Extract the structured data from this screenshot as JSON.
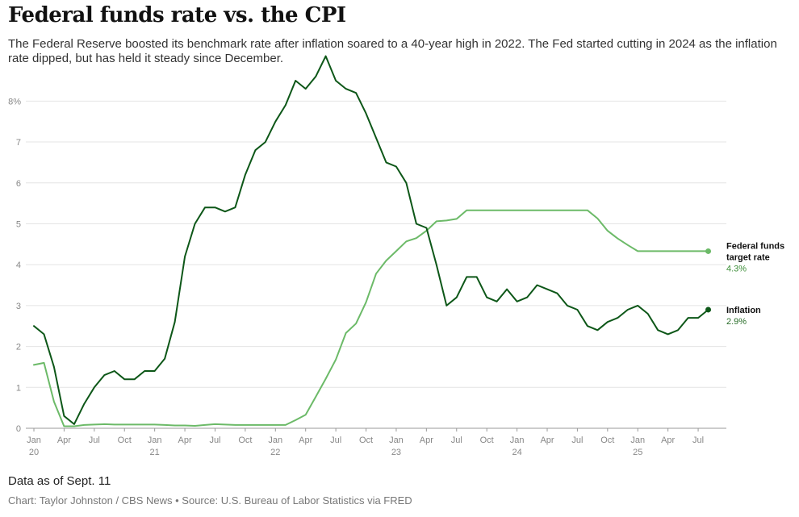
{
  "header": {
    "title": "Federal funds rate vs. the CPI",
    "subtitle": "The Federal Reserve boosted its benchmark rate after inflation soared to a 40-year high in 2022. The Fed started cutting in 2024 as the inflation rate dipped, but has held it steady since December."
  },
  "footer": {
    "note": "Data as of Sept. 11",
    "credit": "Chart: Taylor Johnston / CBS News • Source: U.S. Bureau of Labor Statistics via FRED"
  },
  "colors": {
    "inflation": "#0d5718",
    "fed_funds": "#6cba68",
    "fed_value": "#3f8f3a",
    "inflation_value": "#2a6e2a",
    "grid": "#e4e4e4",
    "axis": "#999999"
  },
  "chart_data": {
    "type": "line",
    "title": "Federal funds rate vs. the CPI",
    "x_unit": "month index (0 = Jan 2020)",
    "xlim": [
      0,
      68
    ],
    "ylim": [
      0,
      8.5
    ],
    "y_ticks": [
      {
        "value": 0,
        "label": "0"
      },
      {
        "value": 1,
        "label": "1"
      },
      {
        "value": 2,
        "label": "2"
      },
      {
        "value": 3,
        "label": "3"
      },
      {
        "value": 4,
        "label": "4"
      },
      {
        "value": 5,
        "label": "5"
      },
      {
        "value": 6,
        "label": "6"
      },
      {
        "value": 7,
        "label": "7"
      },
      {
        "value": 8,
        "label": "8%"
      }
    ],
    "x_ticks": [
      {
        "month": 0,
        "label": "Jan",
        "year": "20"
      },
      {
        "month": 3,
        "label": "Apr"
      },
      {
        "month": 6,
        "label": "Jul"
      },
      {
        "month": 9,
        "label": "Oct"
      },
      {
        "month": 12,
        "label": "Jan",
        "year": "21"
      },
      {
        "month": 15,
        "label": "Apr"
      },
      {
        "month": 18,
        "label": "Jul"
      },
      {
        "month": 21,
        "label": "Oct"
      },
      {
        "month": 24,
        "label": "Jan",
        "year": "22"
      },
      {
        "month": 27,
        "label": "Apr"
      },
      {
        "month": 30,
        "label": "Jul"
      },
      {
        "month": 33,
        "label": "Oct"
      },
      {
        "month": 36,
        "label": "Jan",
        "year": "23"
      },
      {
        "month": 39,
        "label": "Apr"
      },
      {
        "month": 42,
        "label": "Jul"
      },
      {
        "month": 45,
        "label": "Oct"
      },
      {
        "month": 48,
        "label": "Jan",
        "year": "24"
      },
      {
        "month": 51,
        "label": "Apr"
      },
      {
        "month": 54,
        "label": "Jul"
      },
      {
        "month": 57,
        "label": "Oct"
      },
      {
        "month": 60,
        "label": "Jan",
        "year": "25"
      },
      {
        "month": 63,
        "label": "Apr"
      },
      {
        "month": 66,
        "label": "Jul"
      }
    ],
    "series": [
      {
        "name": "Inflation",
        "label_lines": [
          "Inflation"
        ],
        "end_value": "2.9%",
        "values": [
          2.5,
          2.3,
          1.5,
          0.3,
          0.1,
          0.6,
          1.0,
          1.3,
          1.4,
          1.2,
          1.2,
          1.4,
          1.4,
          1.7,
          2.6,
          4.2,
          5.0,
          5.4,
          5.4,
          5.3,
          5.4,
          6.2,
          6.8,
          7.0,
          7.5,
          7.9,
          8.5,
          8.3,
          8.6,
          9.1,
          8.5,
          8.3,
          8.2,
          7.7,
          7.1,
          6.5,
          6.4,
          6.0,
          5.0,
          4.9,
          4.0,
          3.0,
          3.2,
          3.7,
          3.7,
          3.2,
          3.1,
          3.4,
          3.1,
          3.2,
          3.5,
          3.4,
          3.3,
          3.0,
          2.9,
          2.5,
          2.4,
          2.6,
          2.7,
          2.9,
          3.0,
          2.8,
          2.4,
          2.3,
          2.4,
          2.7,
          2.7,
          2.9
        ]
      },
      {
        "name": "Federal funds target rate",
        "label_lines": [
          "Federal funds",
          "target rate"
        ],
        "end_value": "4.3%",
        "values": [
          1.55,
          1.6,
          0.65,
          0.05,
          0.05,
          0.08,
          0.09,
          0.1,
          0.09,
          0.09,
          0.09,
          0.09,
          0.09,
          0.08,
          0.07,
          0.07,
          0.06,
          0.08,
          0.1,
          0.09,
          0.08,
          0.08,
          0.08,
          0.08,
          0.08,
          0.08,
          0.2,
          0.33,
          0.77,
          1.21,
          1.68,
          2.33,
          2.56,
          3.08,
          3.78,
          4.1,
          4.33,
          4.57,
          4.65,
          4.83,
          5.06,
          5.08,
          5.12,
          5.33,
          5.33,
          5.33,
          5.33,
          5.33,
          5.33,
          5.33,
          5.33,
          5.33,
          5.33,
          5.33,
          5.33,
          5.33,
          5.13,
          4.83,
          4.64,
          4.48,
          4.33,
          4.33,
          4.33,
          4.33,
          4.33,
          4.33,
          4.33,
          4.33
        ]
      }
    ]
  }
}
